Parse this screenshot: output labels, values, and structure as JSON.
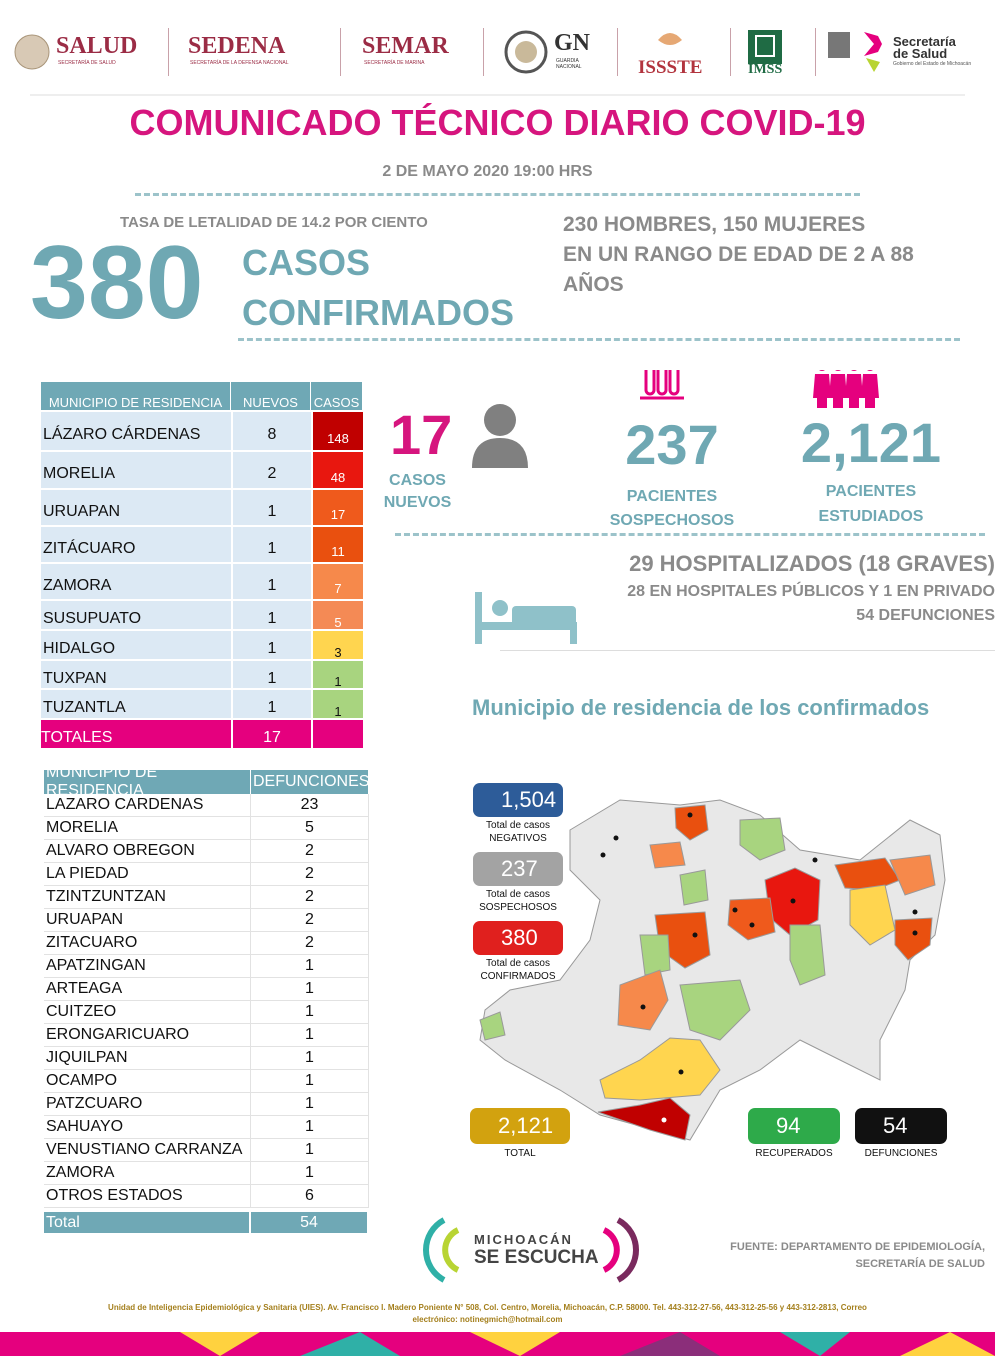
{
  "header": {
    "logos": [
      {
        "name": "SALUD",
        "subtitle": "SECRETARÍA DE SALUD"
      },
      {
        "name": "SEDENA",
        "subtitle": "SECRETARÍA DE LA DEFENSA NACIONAL"
      },
      {
        "name": "SEMAR",
        "subtitle": "SECRETARÍA DE MARINA"
      },
      {
        "name": "GN",
        "subtitle": "GUARDIA NACIONAL"
      },
      {
        "name": "ISSSTE"
      },
      {
        "name": "IMSS"
      },
      {
        "name": "Secretaría de Salud",
        "subtitle": "Gobierno del Estado de Michoacán"
      }
    ]
  },
  "title": "COMUNICADO TÉCNICO DIARIO COVID-19",
  "date": "2 DE MAYO 2020 19:00 HRS",
  "lethality": "TASA DE LETALIDAD DE 14.2 POR CIENTO",
  "confirmed": {
    "value": "380",
    "label": [
      "CASOS",
      "CONFIRMADOS"
    ]
  },
  "demographics": [
    "230 HOMBRES, 150 MUJERES",
    "EN UN RANGO DE EDAD DE 2 A 88",
    "AÑOS"
  ],
  "cases_table": {
    "header": [
      "MUNICIPIO DE RESIDENCIA",
      "NUEVOS",
      "CASOS"
    ],
    "rows": [
      {
        "municipio": "LÁZARO CÁRDENAS",
        "nuevos": 8,
        "casos": 148,
        "color": "#c00000"
      },
      {
        "municipio": "MORELIA",
        "nuevos": 2,
        "casos": 48,
        "color": "#e8170f"
      },
      {
        "municipio": "URUAPAN",
        "nuevos": 1,
        "casos": 17,
        "color": "#ef5a1c"
      },
      {
        "municipio": "ZITÁCUARO",
        "nuevos": 1,
        "casos": 11,
        "color": "#e9500f"
      },
      {
        "municipio": "ZAMORA",
        "nuevos": 1,
        "casos": 7,
        "color": "#f6894b"
      },
      {
        "municipio": "SUSUPUATO",
        "nuevos": 1,
        "casos": 5,
        "color": "#f48a55"
      },
      {
        "municipio": "HIDALGO",
        "nuevos": 1,
        "casos": 3,
        "color": "#ffd54f"
      },
      {
        "municipio": "TUXPAN",
        "nuevos": 1,
        "casos": 1,
        "color": "#a8d47f"
      },
      {
        "municipio": "TUZANTLA",
        "nuevos": 1,
        "casos": 1,
        "color": "#a8d47f"
      }
    ],
    "totals": {
      "label": "TOTALES",
      "nuevos": 17
    }
  },
  "new_cases": {
    "value": "17",
    "label": [
      "CASOS",
      "NUEVOS"
    ]
  },
  "suspects": {
    "value": "237",
    "label": [
      "PACIENTES",
      "SOSPECHOSOS"
    ]
  },
  "studied": {
    "value": "2,121",
    "label": [
      "PACIENTES",
      "ESTUDIADOS"
    ]
  },
  "hospital": [
    "29 HOSPITALIZADOS (18 GRAVES)",
    "28 EN HOSPITALES PÚBLICOS Y 1 EN PRIVADO",
    "54 DEFUNCIONES"
  ],
  "map": {
    "title": "Municipio de residencia de los confirmados",
    "legend": [
      {
        "value": "1,504",
        "caption": [
          "Total de casos",
          "NEGATIVOS"
        ]
      },
      {
        "value": "237",
        "caption": [
          "Total de casos",
          "SOSPECHOSOS"
        ]
      },
      {
        "value": "380",
        "caption": [
          "Total de casos",
          "CONFIRMADOS"
        ]
      }
    ],
    "totals": [
      {
        "value": "2,121",
        "caption": "TOTAL"
      },
      {
        "value": "94",
        "caption": "RECUPERADOS"
      },
      {
        "value": "54",
        "caption": "DEFUNCIONES"
      }
    ]
  },
  "deaths_table": {
    "header": [
      "MUNICIPIO DE RESIDENCIA",
      "DEFUNCIONES"
    ],
    "rows": [
      [
        "LAZARO CARDENAS",
        23
      ],
      [
        "MORELIA",
        5
      ],
      [
        "ALVARO OBREGON",
        2
      ],
      [
        "LA PIEDAD",
        2
      ],
      [
        "TZINTZUNTZAN",
        2
      ],
      [
        "URUAPAN",
        2
      ],
      [
        "ZITACUARO",
        2
      ],
      [
        "APATZINGAN",
        1
      ],
      [
        "ARTEAGA",
        1
      ],
      [
        "CUITZEO",
        1
      ],
      [
        "ERONGARICUARO",
        1
      ],
      [
        "JIQUILPAN",
        1
      ],
      [
        "OCAMPO",
        1
      ],
      [
        "PATZCUARO",
        1
      ],
      [
        "SAHUAYO",
        1
      ],
      [
        "VENUSTIANO CARRANZA",
        1
      ],
      [
        "ZAMORA",
        1
      ],
      [
        "OTROS ESTADOS",
        6
      ]
    ],
    "total": [
      "Total",
      54
    ]
  },
  "footer": {
    "slogan": [
      "MICHOACÁN",
      "SE ESCUCHA"
    ],
    "source": [
      "FUENTE: DEPARTAMENTO DE EPIDEMIOLOGÍA,",
      "SECRETARÍA DE SALUD"
    ],
    "address": [
      "Unidad de Inteligencia Epidemiológica y Sanitaria (UIES). Av. Francisco I. Madero Poniente N° 508, Col. Centro, Morelia, Michoacán, C.P. 58000. Tel. 443-312-27-56, 443-312-25-56 y 443-312-2813, Correo",
      "electrónico: notinegmich@hotmail.com"
    ]
  }
}
